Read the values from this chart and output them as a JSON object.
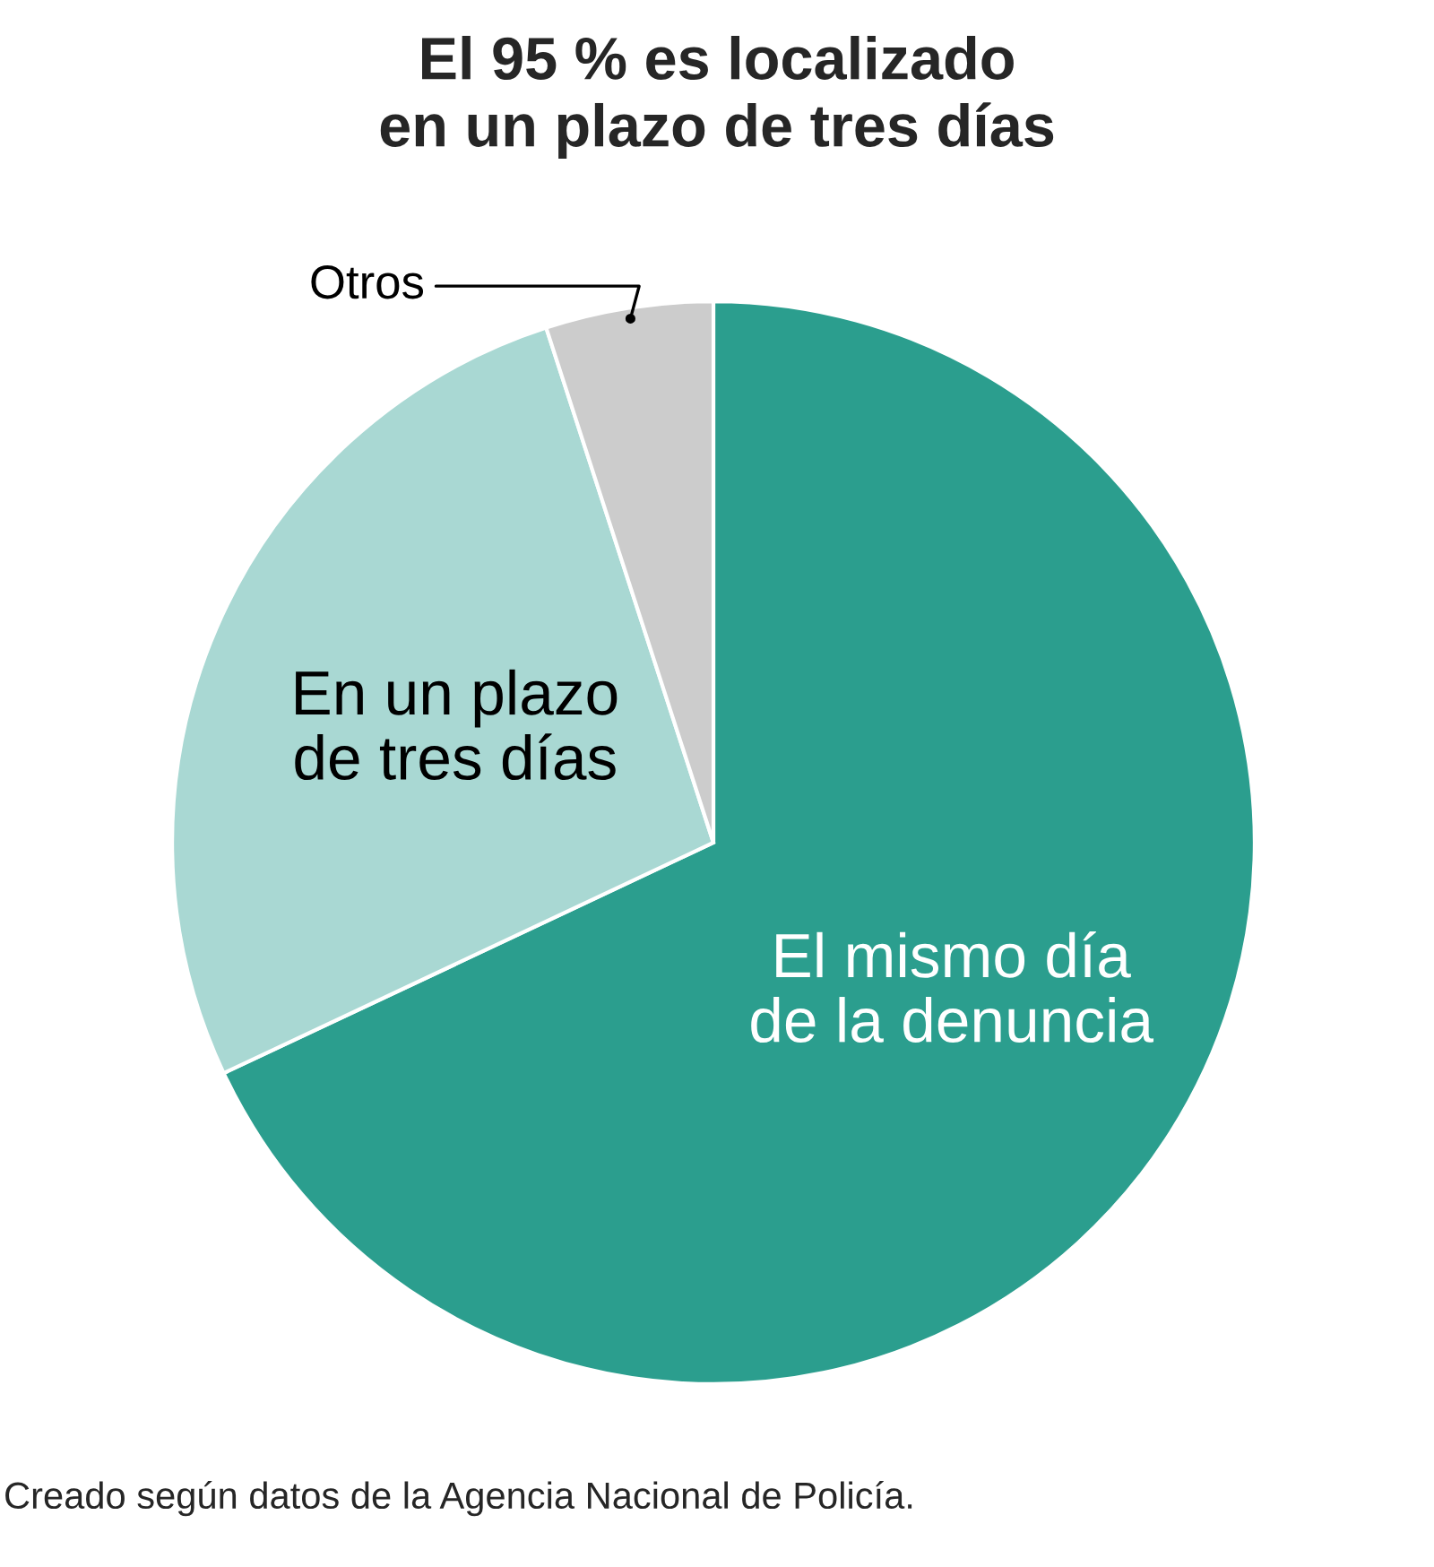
{
  "chart_data": {
    "type": "pie",
    "title": "El 95 % es localizado\nen un plazo de tres días",
    "categories": [
      "El mismo día\nde la denuncia",
      "En un plazo\nde tres días",
      "Otros"
    ],
    "values": [
      68,
      27,
      5
    ],
    "colors": [
      "#2b9e8e",
      "#a9d8d3",
      "#cccccc"
    ],
    "annotations": [
      "Creado según datos de la Agencia Nacional de Policía."
    ]
  }
}
